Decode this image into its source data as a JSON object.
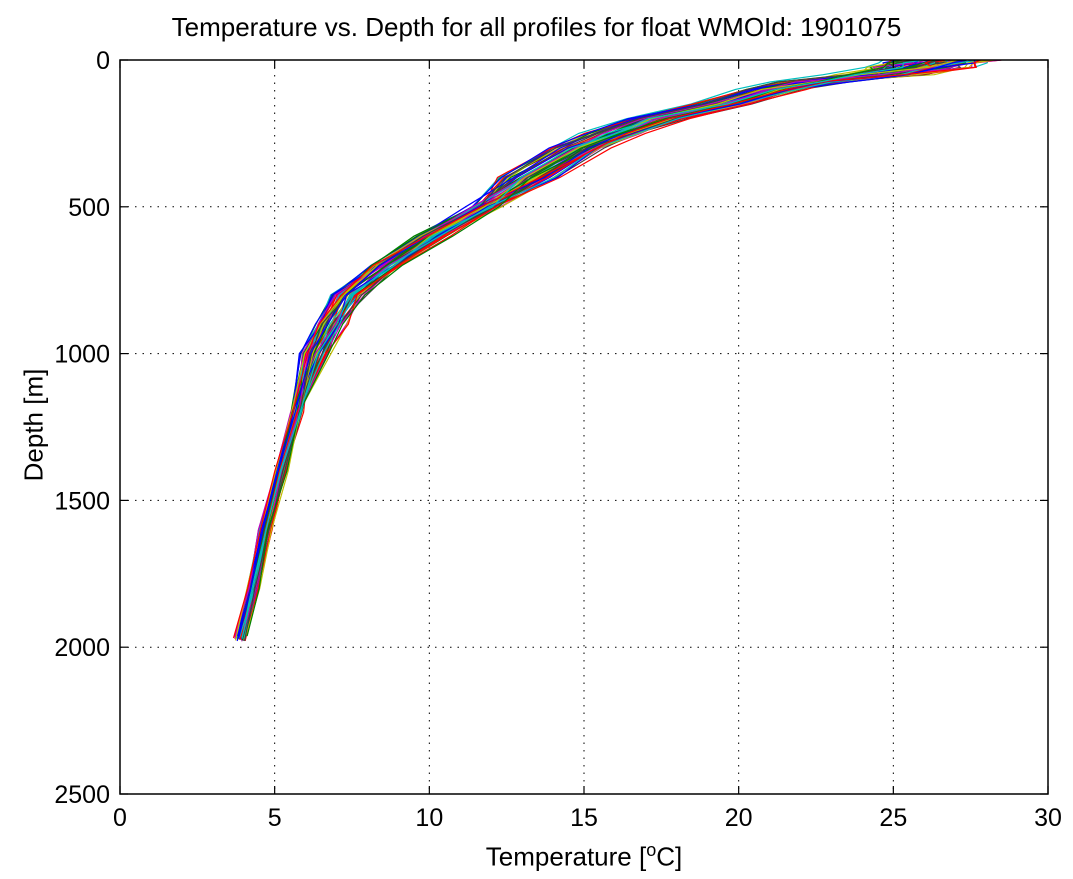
{
  "chart_data": {
    "type": "line",
    "title": "Temperature vs. Depth for all profiles for float WMOId: 1901075",
    "xlabel_prefix": "Temperature [",
    "xlabel_sup": "o",
    "xlabel_suffix": "C]",
    "ylabel": "Depth [m]",
    "xlim": [
      0,
      30
    ],
    "ylim": [
      0,
      2500
    ],
    "y_reversed": true,
    "x_ticks": [
      0,
      5,
      10,
      15,
      20,
      25,
      30
    ],
    "y_ticks": [
      0,
      500,
      1000,
      1500,
      2000,
      2500
    ],
    "grid": true,
    "grid_style": "dotted",
    "legend": "none",
    "depth_levels": [
      0,
      10,
      25,
      50,
      75,
      100,
      150,
      200,
      250,
      300,
      400,
      500,
      600,
      700,
      800,
      900,
      1000,
      1200,
      1400,
      1600,
      1800,
      1970
    ],
    "reference_profile_temperature": [
      26.5,
      26.3,
      25.8,
      24.6,
      22.5,
      21.2,
      19.6,
      17.4,
      16.1,
      14.9,
      13.3,
      11.8,
      10.1,
      8.6,
      7.4,
      6.8,
      6.3,
      5.7,
      5.2,
      4.7,
      4.3,
      3.9
    ],
    "profile_count": 60,
    "series_colors": [
      "#0000ff",
      "#008000",
      "#ff0000",
      "#00bfbf",
      "#bf00bf",
      "#bfbf00",
      "#404040"
    ]
  }
}
